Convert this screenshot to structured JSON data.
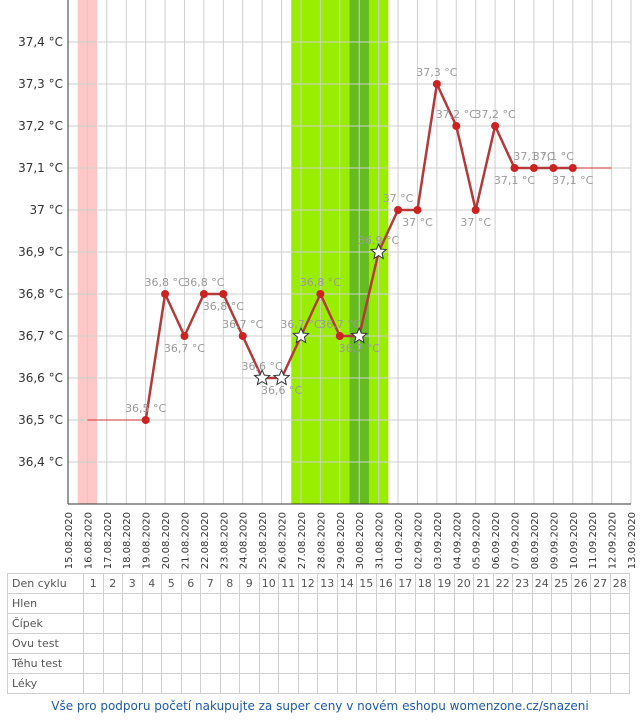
{
  "chart_data": {
    "type": "line",
    "y_unit": "°C",
    "y_ticks": [
      "36,4 °C",
      "36,5 °C",
      "36,6 °C",
      "36,7 °C",
      "36,8 °C",
      "36,9 °C",
      "37 °C",
      "37,1 °C",
      "37,2 °C",
      "37,3 °C",
      "37,4 °C"
    ],
    "ylim": [
      36.3,
      37.5
    ],
    "dates": [
      "15.08.2020",
      "16.08.2020",
      "17.08.2020",
      "18.08.2020",
      "19.08.2020",
      "20.08.2020",
      "21.08.2020",
      "22.08.2020",
      "23.08.2020",
      "24.08.2020",
      "25.08.2020",
      "26.08.2020",
      "27.08.2020",
      "28.08.2020",
      "29.08.2020",
      "30.08.2020",
      "31.08.2020",
      "01.09.2020",
      "02.09.2020",
      "03.09.2020",
      "04.09.2020",
      "05.09.2020",
      "06.09.2020",
      "07.09.2020",
      "08.09.2020",
      "09.09.2020",
      "10.09.2020",
      "11.09.2020",
      "12.09.2020",
      "13.09.2020"
    ],
    "grid": true,
    "series": [
      {
        "values": [
          null,
          null,
          null,
          null,
          36.5,
          36.8,
          36.7,
          36.8,
          36.8,
          36.7,
          36.6,
          36.6,
          36.7,
          36.8,
          36.7,
          36.7,
          36.9,
          37.0,
          37.0,
          37.3,
          37.2,
          37.0,
          37.2,
          37.1,
          37.1,
          37.1,
          37.1,
          null,
          null,
          null
        ],
        "labels": [
          null,
          null,
          null,
          null,
          "36,5 °C",
          "36,8 °C",
          "36,7 °C",
          "36,8 °C",
          "36,8 °C",
          "36,7 °C",
          "36,6 °C",
          "36,6 °C",
          "36,7 °C",
          "36,8 °C",
          "36,7 °C",
          "36,7 °C",
          "36,9 °C",
          "37 °C",
          "37 °C",
          "37,3 °C",
          "37,2 °C",
          "37 °C",
          "37,2 °C",
          "37,1 °C",
          "37,1 °C",
          "37,1 °C",
          "37,1 °C",
          null,
          null,
          null
        ],
        "label_pos": [
          null,
          null,
          null,
          null,
          "above",
          "above",
          "below",
          "above",
          "below",
          "above",
          "above",
          "below",
          "above",
          "above",
          "above",
          "below",
          "above",
          "above",
          "below",
          "above",
          "above",
          "below",
          "above",
          "below",
          "above",
          "above",
          "below",
          null,
          null,
          null
        ],
        "star_points": [
          10,
          11,
          12,
          15,
          16
        ]
      }
    ],
    "baseline_left": {
      "from_index": 1,
      "to_index": 4,
      "value": 36.5
    },
    "baseline_right": {
      "from_index": 26,
      "to_index": 28,
      "value": 37.1
    },
    "bands": [
      {
        "kind": "menstruation",
        "from_index": 1,
        "to_index": 1,
        "color": "#ffc8c8"
      },
      {
        "kind": "fertile",
        "from_index": 12,
        "to_index": 16,
        "color": "#99ee00"
      },
      {
        "kind": "ovulation",
        "from_index": 15,
        "to_index": 15,
        "color": "#66bb22"
      }
    ],
    "colors": {
      "line": "#b33a3a",
      "marker": "#cc2222",
      "label": "#9a9a9a",
      "grid": "#cfcfcf"
    }
  },
  "table": {
    "header_label": "Den cyklu",
    "days": [
      "1",
      "2",
      "3",
      "4",
      "5",
      "6",
      "7",
      "8",
      "9",
      "10",
      "11",
      "12",
      "13",
      "14",
      "15",
      "16",
      "17",
      "18",
      "19",
      "20",
      "21",
      "22",
      "23",
      "24",
      "25",
      "26",
      "27",
      "28"
    ],
    "rows": [
      "Hlen",
      "Čípek",
      "Ovu test",
      "Těhu test",
      "Léky"
    ]
  },
  "footer": "Vše pro podporu početí nakupujte za super ceny v novém eshopu womenzone.cz/snazeni"
}
